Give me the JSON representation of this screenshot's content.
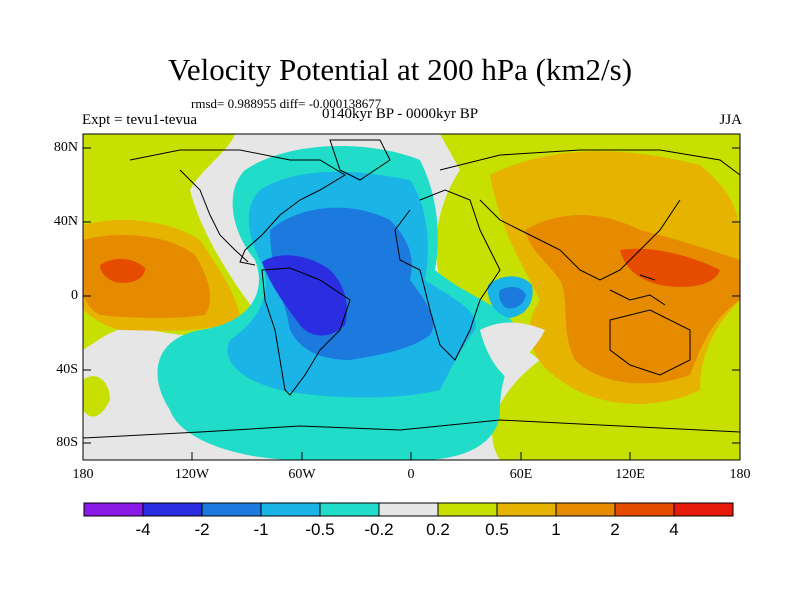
{
  "header": {
    "title": "Velocity Potential at 200 hPa (km2/s)",
    "stats": "rmsd= 0.988955 diff= -0.000138677",
    "experiment": "Expt = tevu1-tevua",
    "period": "0140kyr BP - 0000kyr BP",
    "season": "JJA"
  },
  "axes": {
    "lat_labels": [
      "80N",
      "40N",
      "0",
      "40S",
      "80S"
    ],
    "lon_labels": [
      "180",
      "120W",
      "60W",
      "0",
      "60E",
      "120E",
      "180"
    ]
  },
  "colorbar": {
    "labels": [
      "-4",
      "-2",
      "-1",
      "-0.5",
      "-0.2",
      "0.2",
      "0.5",
      "1",
      "2",
      "4"
    ],
    "colors": [
      "#8a1ae6",
      "#2a2ee0",
      "#1c7ade",
      "#1ab4e6",
      "#21dcc8",
      "#e6e6e6",
      "#c8e000",
      "#e6b400",
      "#e68a00",
      "#e64c00",
      "#e61a0a"
    ]
  },
  "chart_data": {
    "type": "heatmap",
    "title": "Velocity Potential at 200 hPa (km2/s)",
    "field": "200 hPa velocity potential difference (JJA)",
    "units": "km2/s",
    "contour_levels": [
      -4,
      -2,
      -1,
      -0.5,
      -0.2,
      0.2,
      0.5,
      1,
      2,
      4
    ],
    "lon_range": [
      -180,
      180
    ],
    "lat_range": [
      -90,
      90
    ],
    "features": [
      {
        "region": "Tropical South America / Atlantic",
        "sign": "negative",
        "min_level": -2
      },
      {
        "region": "Western Indian Ocean (near 60E, 0)",
        "sign": "negative",
        "min_level": -1
      },
      {
        "region": "Asia / Indian Ocean / Maritime Continent",
        "sign": "positive",
        "max_level": 2
      },
      {
        "region": "Eastern North Pacific (near 150W, 10N)",
        "sign": "positive",
        "max_level": 2
      }
    ]
  }
}
